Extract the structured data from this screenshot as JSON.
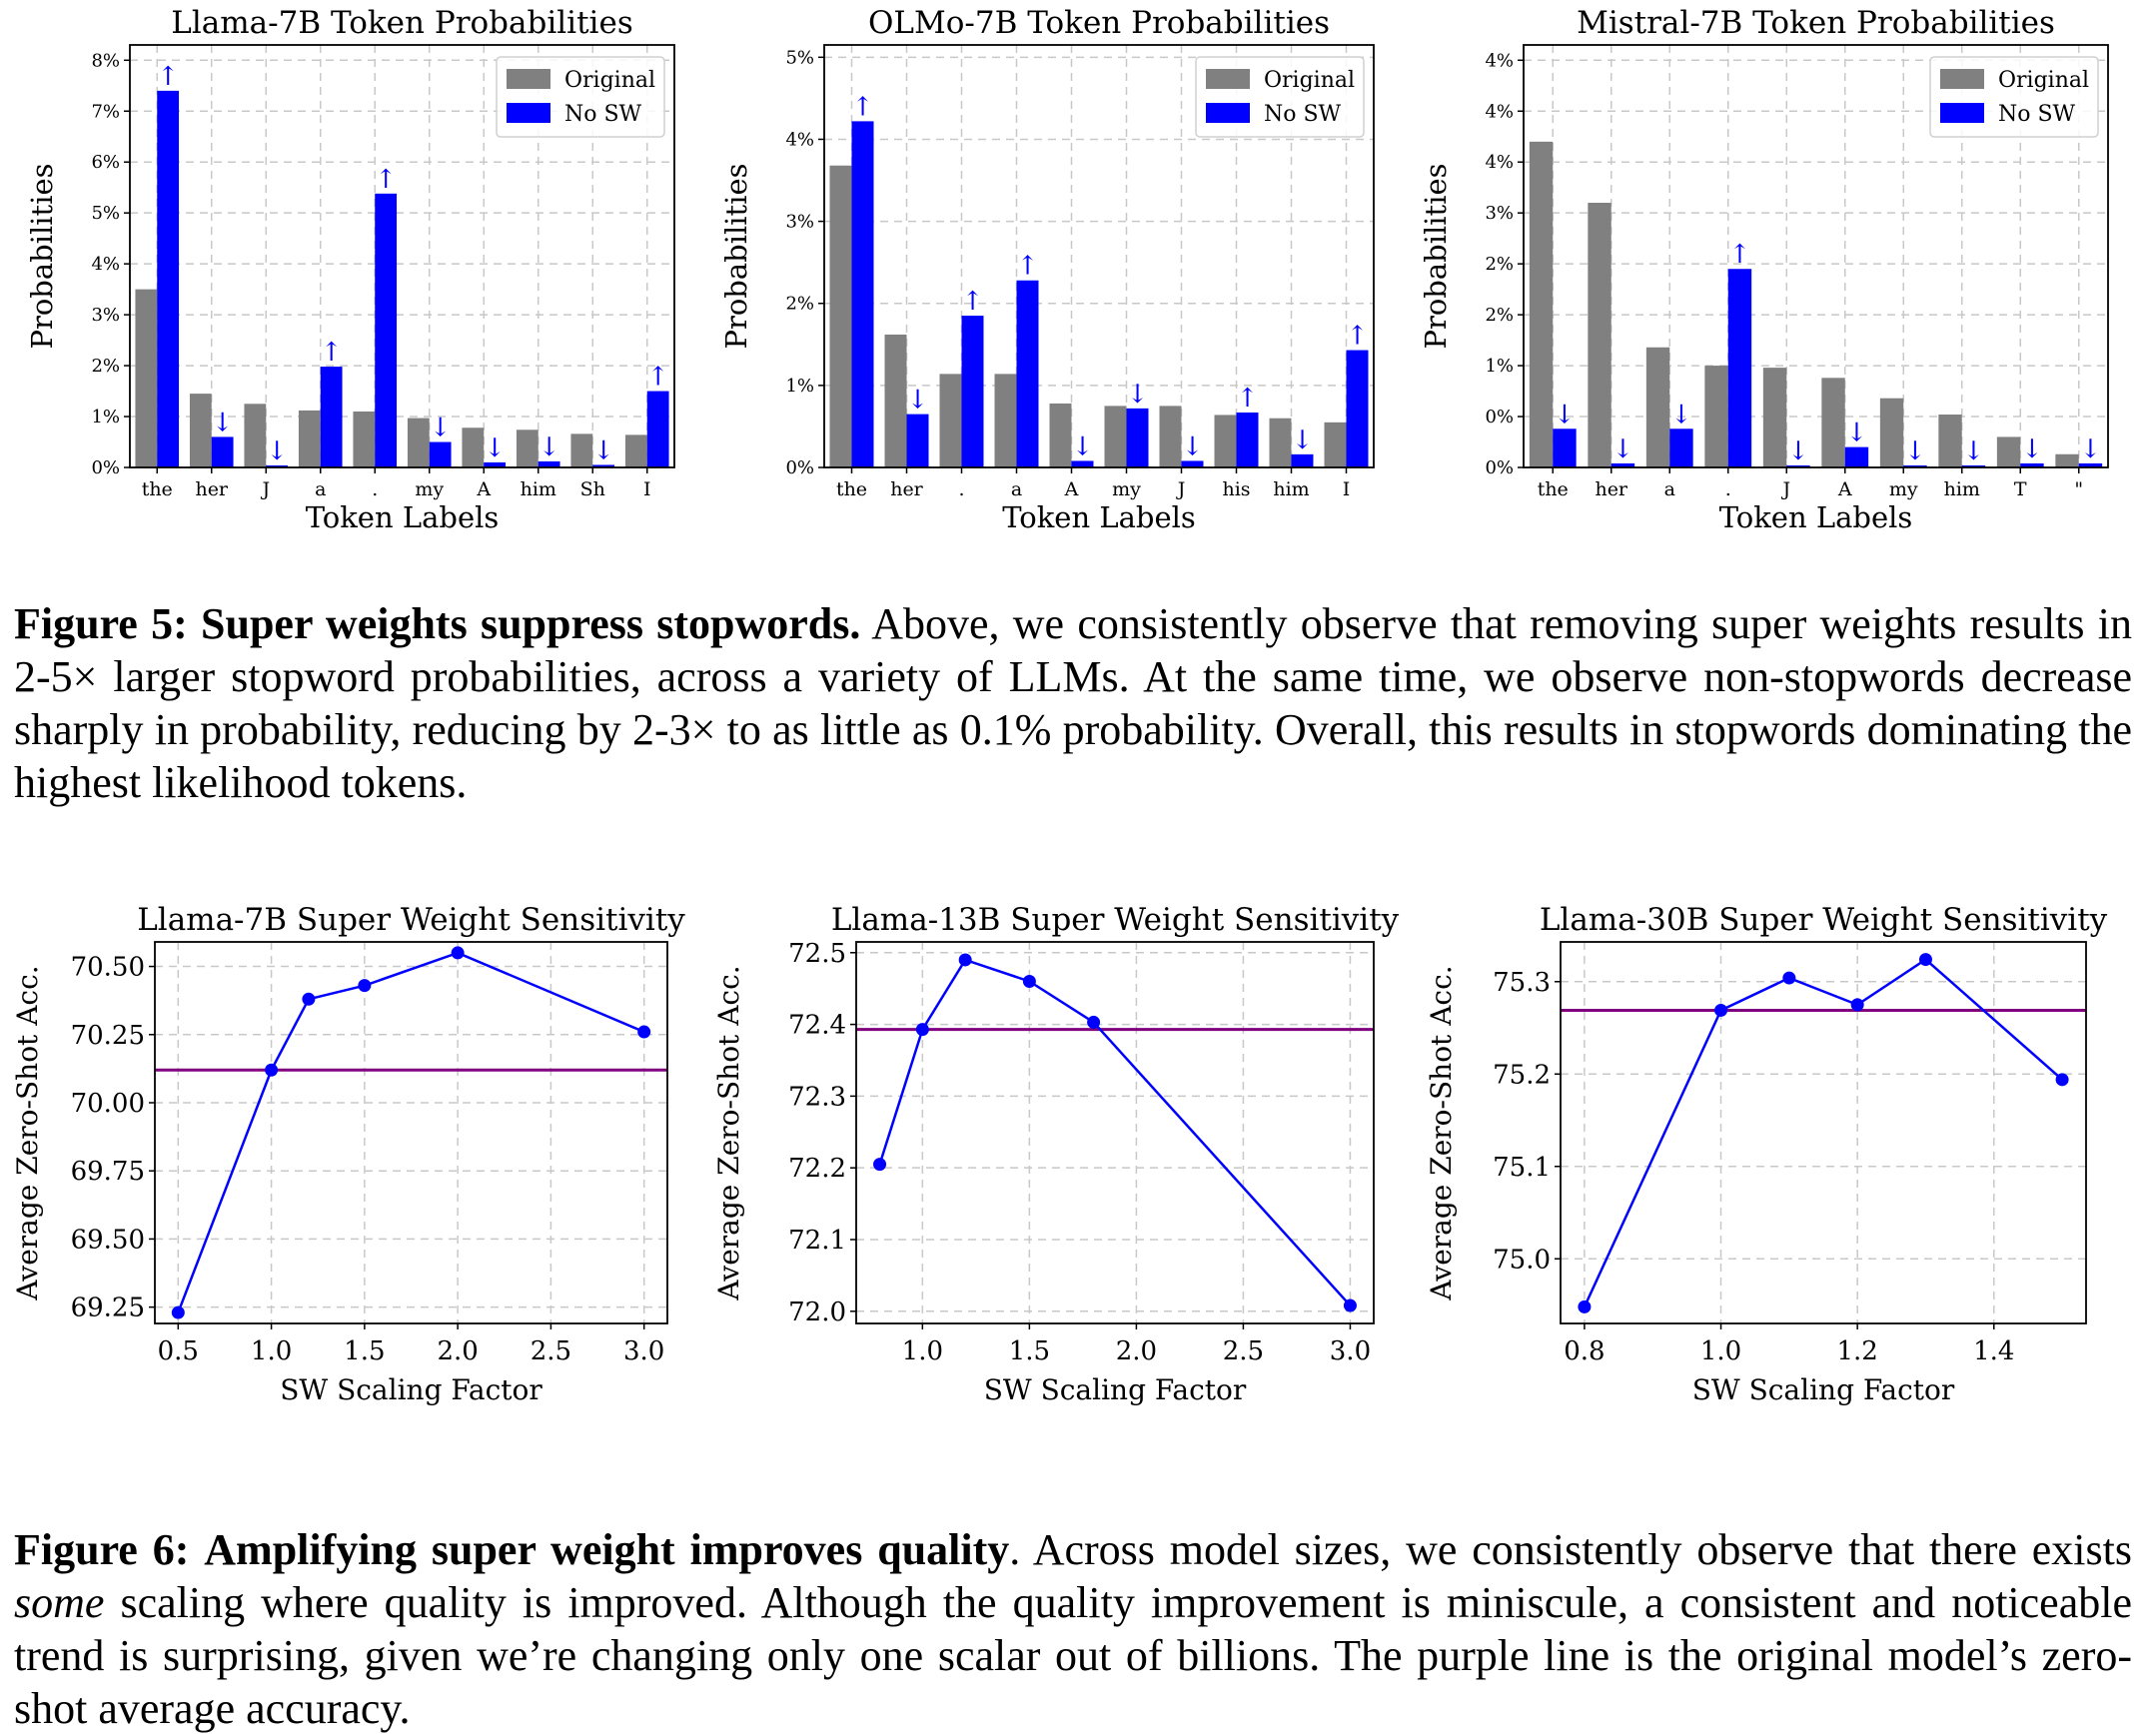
{
  "figure5": {
    "caption_label": "Figure 5:",
    "caption_bold": "Super weights suppress stopwords.",
    "caption_text": "Above, we consistently observe that removing super weights results in 2-5× larger stopword probabilities, across a variety of LLMs. At the same time, we observe non-stopwords decrease sharply in probability, reducing by 2-3× to as little as 0.1% probability. Overall, this results in stopwords dominating the highest likelihood tokens."
  },
  "figure6": {
    "caption_label": "Figure 6:",
    "caption_bold": "Amplifying super weight improves quality",
    "caption_pre": ". Across model sizes, we consistently observe that there exists ",
    "caption_em": "some",
    "caption_post": " scaling where quality is improved. Although the quality improvement is miniscule, a consistent and noticeable trend is surprising, given we’re changing only one scalar out of billions. The purple line is the original model’s zero-shot average accuracy."
  },
  "colors": {
    "original": "#808080",
    "no_sw": "#0000ff",
    "line": "#0000ff",
    "baseline": "#800080"
  },
  "chart_data": [
    {
      "type": "bar",
      "title": "Llama-7B Token Probabilities",
      "xlabel": "Token Labels",
      "ylabel": "Probabilities",
      "categories": [
        "the",
        "her",
        "J",
        "a",
        ".",
        "my",
        "A",
        "him",
        "Sh",
        "I"
      ],
      "series": [
        {
          "name": "Original",
          "values": [
            3.5,
            1.45,
            1.25,
            1.12,
            1.1,
            0.97,
            0.78,
            0.74,
            0.66,
            0.64
          ]
        },
        {
          "name": "No SW",
          "values": [
            7.4,
            0.6,
            0.04,
            1.98,
            5.38,
            0.5,
            0.1,
            0.12,
            0.05,
            1.5
          ]
        }
      ],
      "arrows": [
        "↑",
        "↓",
        "↓",
        "↑",
        "↑",
        "↓",
        "↓",
        "↓",
        "↓",
        "↑"
      ],
      "yticks": [
        "0%",
        "1%",
        "2%",
        "3%",
        "4%",
        "5%",
        "6%",
        "7%",
        "8%"
      ],
      "ylim": [
        0,
        8.3
      ],
      "legend": "top-right",
      "grid": true
    },
    {
      "type": "bar",
      "title": "OLMo-7B Token Probabilities",
      "xlabel": "Token Labels",
      "ylabel": "Probabilities",
      "categories": [
        "the",
        "her",
        ".",
        "a",
        "A",
        "my",
        "J",
        "his",
        "him",
        "I"
      ],
      "series": [
        {
          "name": "Original",
          "values": [
            3.68,
            1.62,
            1.14,
            1.14,
            0.78,
            0.75,
            0.75,
            0.64,
            0.6,
            0.55
          ]
        },
        {
          "name": "No SW",
          "values": [
            4.22,
            0.65,
            1.85,
            2.28,
            0.08,
            0.72,
            0.08,
            0.67,
            0.16,
            1.43
          ]
        }
      ],
      "arrows": [
        "↑",
        "↓",
        "↑",
        "↑",
        "↓",
        "↓",
        "↓",
        "↑",
        "↓",
        "↑"
      ],
      "yticks": [
        "0%",
        "1%",
        "2%",
        "3%",
        "4%",
        "5%"
      ],
      "ylim": [
        0,
        5.15
      ],
      "legend": "top-right",
      "grid": true
    },
    {
      "type": "bar",
      "title": "Mistral-7B Token Probabilities",
      "xlabel": "Token Labels",
      "ylabel": "Probabilities",
      "categories": [
        "the",
        "her",
        "a",
        ".",
        "J",
        "A",
        "my",
        "him",
        "T",
        "\""
      ],
      "series": [
        {
          "name": "Original",
          "values": [
            3.2,
            2.6,
            1.18,
            1.0,
            0.98,
            0.88,
            0.68,
            0.52,
            0.3,
            0.13
          ]
        },
        {
          "name": "No SW",
          "values": [
            0.38,
            0.04,
            0.38,
            1.95,
            0.02,
            0.2,
            0.02,
            0.02,
            0.04,
            0.04
          ]
        }
      ],
      "arrows": [
        "↓",
        "↓",
        "↓",
        "↑",
        "↓",
        "↓",
        "↓",
        "↓",
        "↓",
        "↓"
      ],
      "yticks": [
        "0%",
        "0%",
        "1%",
        "2%",
        "2%",
        "3%",
        "4%",
        "4%",
        "4%"
      ],
      "ylim": [
        0,
        4.15
      ],
      "legend": "top-right",
      "grid": true
    },
    {
      "type": "line",
      "title": "Llama-7B Super Weight Sensitivity",
      "xlabel": "SW Scaling Factor",
      "ylabel": "Average Zero-Shot Acc.",
      "x": [
        0.5,
        1.0,
        1.2,
        1.5,
        2.0,
        3.0
      ],
      "y": [
        69.23,
        70.12,
        70.38,
        70.43,
        70.55,
        70.26
      ],
      "baseline": 70.12,
      "xticks": [
        "0.5",
        "1.0",
        "1.5",
        "2.0",
        "2.5",
        "3.0"
      ],
      "yticks": [
        "69.25",
        "69.50",
        "69.75",
        "70.00",
        "70.25",
        "70.50"
      ],
      "xlim": [
        0.375,
        3.125
      ],
      "ylim": [
        69.19,
        70.59
      ],
      "grid": true
    },
    {
      "type": "line",
      "title": "Llama-13B Super Weight Sensitivity",
      "xlabel": "SW Scaling Factor",
      "ylabel": "Average Zero-Shot Acc.",
      "x": [
        0.8,
        1.0,
        1.2,
        1.5,
        1.8,
        3.0
      ],
      "y": [
        72.205,
        72.393,
        72.49,
        72.46,
        72.403,
        72.008
      ],
      "baseline": 72.393,
      "xticks": [
        "1.0",
        "1.5",
        "2.0",
        "2.5",
        "3.0"
      ],
      "yticks": [
        "72.0",
        "72.1",
        "72.2",
        "72.3",
        "72.4",
        "72.5"
      ],
      "xlim": [
        0.69,
        3.11
      ],
      "ylim": [
        71.983,
        72.515
      ],
      "grid": true
    },
    {
      "type": "line",
      "title": "Llama-30B Super Weight Sensitivity",
      "xlabel": "SW Scaling Factor",
      "ylabel": "Average Zero-Shot Acc.",
      "x": [
        0.8,
        1.0,
        1.1,
        1.2,
        1.3,
        1.5
      ],
      "y": [
        74.948,
        75.269,
        75.304,
        75.275,
        75.324,
        75.194
      ],
      "baseline": 75.269,
      "xticks": [
        "0.8",
        "1.0",
        "1.2",
        "1.4"
      ],
      "yticks": [
        "75.0",
        "75.1",
        "75.2",
        "75.3"
      ],
      "xlim": [
        0.765,
        1.535
      ],
      "ylim": [
        74.93,
        75.343
      ],
      "grid": true
    }
  ]
}
